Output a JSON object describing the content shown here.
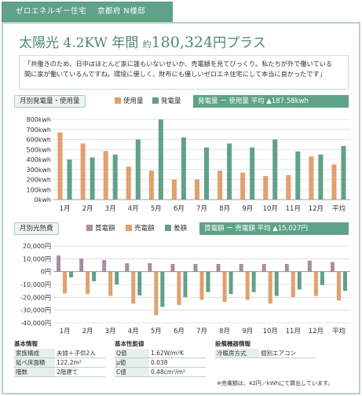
{
  "header": {
    "tag_type": "ゼロエネルギー住宅",
    "tag_location": "京都府 N様邸",
    "title_prefix": "太陽光 4.2KW 年間",
    "title_approx": "約",
    "title_amount": "180,324",
    "title_suffix": "円プラス"
  },
  "quote": {
    "line1": "「共働きのため、日中はほとんど家に誰もいないせいか、売電額を見てびっくり。私たちが外で働いている",
    "line2": "間に家が働いているんですね。環境に優しく、財布にも優しいゼロエネ住宅にして本当に良かったです」"
  },
  "chart1": {
    "section_label": "月別発電量・使用量",
    "avg_text": "発電量 ー 使用量 平均 ▲187.58kwh"
  },
  "chart2": {
    "section_label": "月別光熱費",
    "avg_text": "買電額 ー 売電額 平均 ▲15,027円"
  },
  "chart_data": [
    {
      "type": "bar",
      "title": "月別発電量・使用量",
      "categories": [
        "1月",
        "2月",
        "3月",
        "4月",
        "5月",
        "6月",
        "7月",
        "8月",
        "9月",
        "10月",
        "11月",
        "12月",
        "平均"
      ],
      "ylim": [
        0,
        800
      ],
      "yticks": [
        "800kwh",
        "700kwh",
        "600kwh",
        "500kwh",
        "400kwh",
        "300kwh",
        "200kwh",
        "100kwh",
        "0kwh"
      ],
      "grid": true,
      "series": [
        {
          "name": "使用量",
          "color": "#e4a06a",
          "values": [
            670,
            560,
            485,
            330,
            290,
            200,
            200,
            290,
            270,
            235,
            245,
            430,
            350
          ]
        },
        {
          "name": "発電量",
          "color": "#5ea288",
          "values": [
            400,
            420,
            450,
            600,
            800,
            620,
            520,
            560,
            520,
            600,
            480,
            450,
            535
          ]
        }
      ]
    },
    {
      "type": "bar",
      "title": "月別光熱費",
      "categories": [
        "1月",
        "2月",
        "3月",
        "4月",
        "5月",
        "6月",
        "7月",
        "8月",
        "9月",
        "10月",
        "11月",
        "12月",
        "平均"
      ],
      "ylim": [
        -40000,
        20000
      ],
      "yticks": [
        "20,000円",
        "10,000円",
        "0円",
        "-10,000円",
        "-20,000円",
        "-30,000円",
        "-40,000円"
      ],
      "grid": true,
      "series": [
        {
          "name": "買電額",
          "color": "#a98ca2",
          "values": [
            12500,
            10000,
            9000,
            6500,
            6500,
            6000,
            6000,
            6000,
            6000,
            6000,
            6000,
            8500,
            7500
          ]
        },
        {
          "name": "売電額",
          "color": "#e4a06a",
          "values": [
            -17000,
            -17500,
            -19000,
            -25000,
            -34000,
            -26000,
            -22000,
            -23500,
            -22000,
            -25000,
            -20000,
            -19000,
            -22500
          ]
        },
        {
          "name": "差額",
          "color": "#5ea288",
          "values": [
            -4500,
            -7500,
            -10000,
            -18500,
            -27500,
            -20000,
            -16000,
            -17500,
            -16000,
            -19000,
            -14000,
            -10500,
            -15000
          ]
        }
      ]
    }
  ],
  "specs": {
    "basic": {
      "heading": "基本情報",
      "rows": [
        [
          "家族構成",
          "夫婦＋子供2人"
        ],
        [
          "延べ床面積",
          "122.2m²"
        ],
        [
          "階数",
          "2階建て"
        ]
      ]
    },
    "performance": {
      "heading": "基本性能値",
      "rows": [
        [
          "Q値",
          "1.62W/m²K"
        ],
        [
          "μ値",
          "0.038"
        ],
        [
          "C値",
          "0.48cm²/m²"
        ]
      ]
    },
    "equipment": {
      "heading": "設備機器情報",
      "rows": [
        [
          "冷暖房方式",
          "個別エアコン"
        ]
      ]
    }
  },
  "note": "※売電額は、42円／kWhにて算出しています。"
}
